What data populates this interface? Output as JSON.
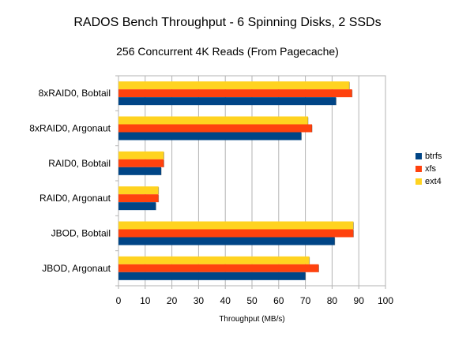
{
  "chart_data": {
    "type": "bar",
    "orientation": "horizontal",
    "title": "RADOS Bench Throughput - 6 Spinning Disks, 2 SSDs",
    "subtitle": "256 Concurrent 4K Reads (From Pagecache)",
    "xlabel": "Throughput (MB/s)",
    "ylabel": "",
    "xlim": [
      0,
      100
    ],
    "xticks": [
      0,
      10,
      20,
      30,
      40,
      50,
      60,
      70,
      80,
      90,
      100
    ],
    "grid": true,
    "legend_position": "right",
    "categories": [
      "8xRAID0, Bobtail",
      "8xRAID0, Argonaut",
      "RAID0, Bobtail",
      "RAID0, Argonaut",
      "JBOD, Bobtail",
      "JBOD, Argonaut"
    ],
    "series": [
      {
        "name": "btrfs",
        "color": "#004586",
        "values": [
          81.5,
          68.5,
          16,
          14,
          81,
          70
        ]
      },
      {
        "name": "xfs",
        "color": "#ff420e",
        "values": [
          87.5,
          72.5,
          17,
          15,
          88,
          75
        ]
      },
      {
        "name": "ext4",
        "color": "#ffd320",
        "values": [
          86.5,
          71,
          17,
          15,
          88,
          71.5
        ]
      }
    ]
  }
}
